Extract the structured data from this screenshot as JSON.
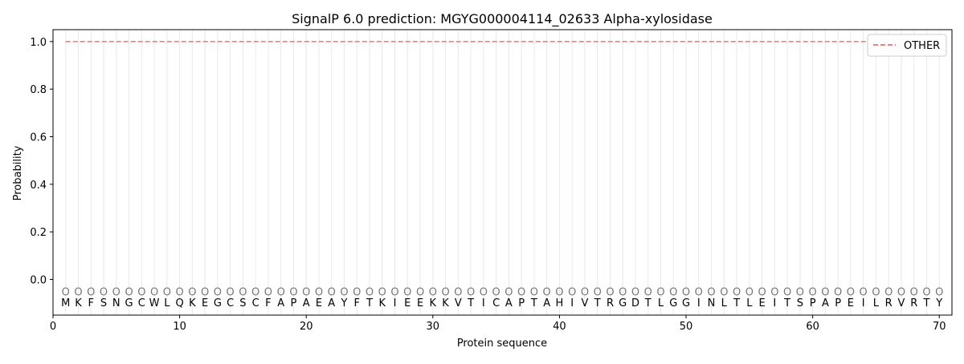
{
  "chart_data": {
    "type": "line",
    "title": "SignalP 6.0 prediction: MGYG000004114_02633 Alpha-xylosidase",
    "xlabel": "Protein sequence",
    "ylabel": "Probability",
    "xlim": [
      0,
      71
    ],
    "ylim": [
      -0.15,
      1.05
    ],
    "x_ticks": [
      0,
      10,
      20,
      30,
      40,
      50,
      60,
      70
    ],
    "y_ticks": [
      0.0,
      0.2,
      0.4,
      0.6,
      0.8,
      1.0
    ],
    "x_tick_labels": [
      "0",
      "10",
      "20",
      "30",
      "40",
      "50",
      "60",
      "70"
    ],
    "y_tick_labels": [
      "0.0",
      "0.2",
      "0.4",
      "0.6",
      "0.8",
      "1.0"
    ],
    "sequence": [
      "M",
      "K",
      "F",
      "S",
      "N",
      "G",
      "C",
      "W",
      "L",
      "Q",
      "K",
      "E",
      "G",
      "C",
      "S",
      "C",
      "F",
      "A",
      "P",
      "A",
      "E",
      "A",
      "Y",
      "F",
      "T",
      "K",
      "I",
      "E",
      "E",
      "K",
      "K",
      "V",
      "T",
      "I",
      "C",
      "A",
      "P",
      "T",
      "A",
      "H",
      "I",
      "V",
      "T",
      "R",
      "G",
      "D",
      "T",
      "L",
      "G",
      "G",
      "I",
      "N",
      "L",
      "T",
      "L",
      "E",
      "I",
      "T",
      "S",
      "P",
      "A",
      "P",
      "E",
      "I",
      "L",
      "R",
      "V",
      "R",
      "T",
      "Y"
    ],
    "state_labels": [
      "O",
      "O",
      "O",
      "O",
      "O",
      "O",
      "O",
      "O",
      "O",
      "O",
      "O",
      "O",
      "O",
      "O",
      "O",
      "O",
      "O",
      "O",
      "O",
      "O",
      "O",
      "O",
      "O",
      "O",
      "O",
      "O",
      "O",
      "O",
      "O",
      "O",
      "O",
      "O",
      "O",
      "O",
      "O",
      "O",
      "O",
      "O",
      "O",
      "O",
      "O",
      "O",
      "O",
      "O",
      "O",
      "O",
      "O",
      "O",
      "O",
      "O",
      "O",
      "O",
      "O",
      "O",
      "O",
      "O",
      "O",
      "O",
      "O",
      "O",
      "O",
      "O",
      "O",
      "O",
      "O",
      "O",
      "O",
      "O",
      "O",
      "O"
    ],
    "series": [
      {
        "name": "OTHER",
        "style": "dashed",
        "color": "#f08080",
        "x_start": 1,
        "x_end": 70,
        "value": 1.0
      }
    ],
    "grid": "vertical",
    "legend": "top-right"
  }
}
